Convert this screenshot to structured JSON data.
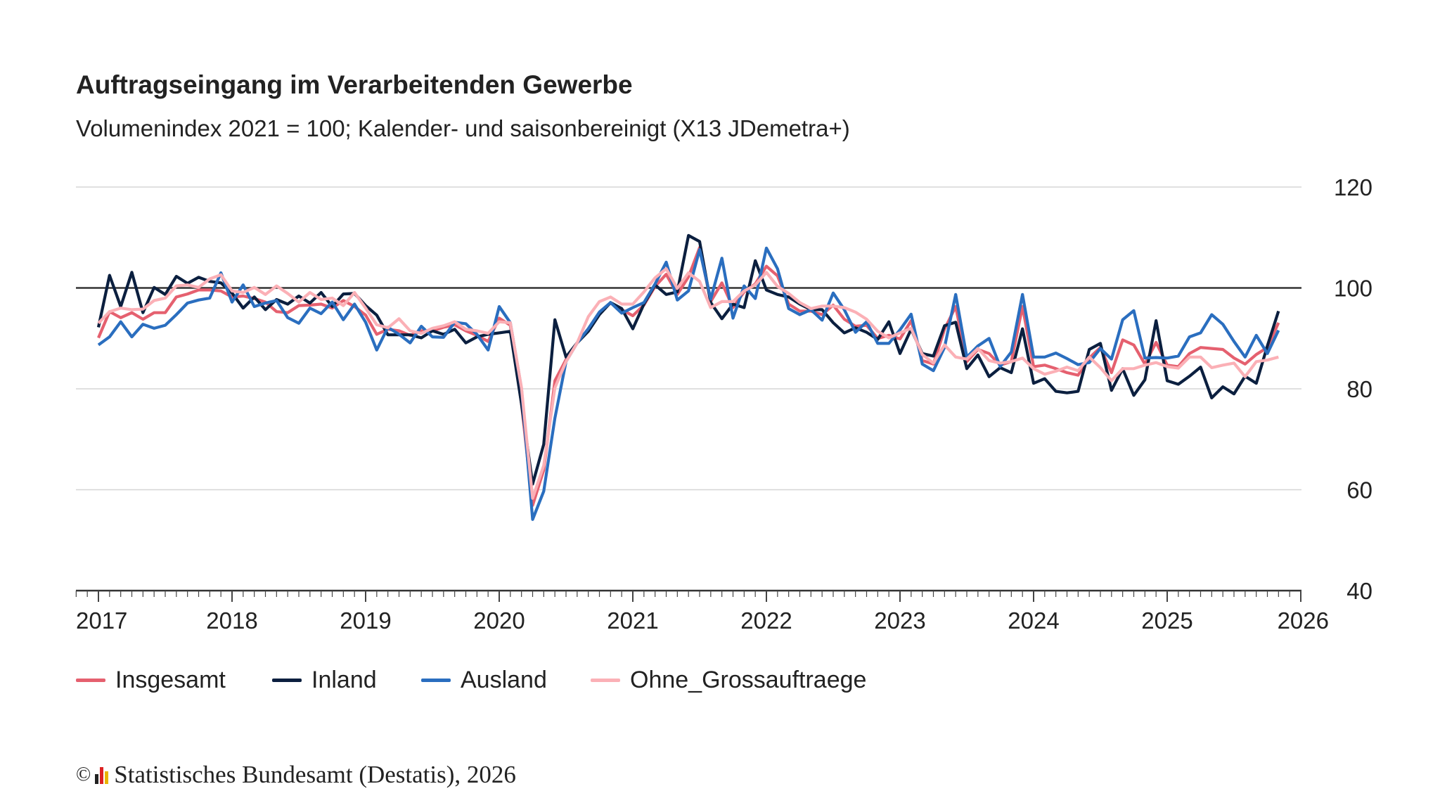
{
  "title": "Auftragseingang im Verarbeitenden Gewerbe",
  "subtitle": "Volumenindex 2021 = 100; Kalender- und saisonbereinigt (X13 JDemetra+)",
  "footer": {
    "copyright": "©",
    "logo": "Destatis",
    "text": "Statistisches Bundesamt (Destatis), 2026"
  },
  "chart_data": {
    "type": "line",
    "title": "Auftragseingang im Verarbeitenden Gewerbe",
    "subtitle": "Volumenindex 2021 = 100; Kalender- und saisonbereinigt (X13 JDemetra+)",
    "xlabel": "",
    "ylabel": "",
    "x_range": [
      "2017-01",
      "2026-01"
    ],
    "x_frequency": "monthly",
    "x_first": "2017-01",
    "x_last": "2025-11",
    "xticks": [
      "2017",
      "2018",
      "2019",
      "2020",
      "2021",
      "2022",
      "2023",
      "2024",
      "2025",
      "2026"
    ],
    "ylim": [
      40,
      120
    ],
    "yticks": [
      40,
      60,
      80,
      100,
      120
    ],
    "yaxis_position": "right",
    "reference_line": 100,
    "grid": true,
    "legend_position": "bottom",
    "series": [
      {
        "name": "Insgesamt",
        "color": "#e5606f",
        "values": [
          90.1,
          95.3,
          94.1,
          95.1,
          93.8,
          95.1,
          95.1,
          98.2,
          98.8,
          99.6,
          99.6,
          99.4,
          98.2,
          98.4,
          97.9,
          97.2,
          95.3,
          95.1,
          96.5,
          96.6,
          96.8,
          96.0,
          97.5,
          96.3,
          94.6,
          90.8,
          91.8,
          91.5,
          90.6,
          91.5,
          91.5,
          92.2,
          92.7,
          91.5,
          90.6,
          89.4,
          94.0,
          92.6,
          77.0,
          56.9,
          63.9,
          81.6,
          85.8,
          89.1,
          91.9,
          95.2,
          97.0,
          95.7,
          94.5,
          96.6,
          100.3,
          102.7,
          98.7,
          102.2,
          108.0,
          97.3,
          101.0,
          96.1,
          99.2,
          100.8,
          104.3,
          102.4,
          96.8,
          95.4,
          95.4,
          94.7,
          96.6,
          93.8,
          92.4,
          92.6,
          90.0,
          90.6,
          89.9,
          93.5,
          85.6,
          84.9,
          91.8,
          96.3,
          85.4,
          87.8,
          87.0,
          84.7,
          85.4,
          96.3,
          84.4,
          84.7,
          84.0,
          83.2,
          82.7,
          86.1,
          88.2,
          83.2,
          89.7,
          88.7,
          84.9,
          89.2,
          84.7,
          84.4,
          87.0,
          88.2,
          88.0,
          87.8,
          86.1,
          84.9,
          86.8,
          88.2,
          93.1
        ]
      },
      {
        "name": "Inland",
        "color": "#0b1f3f",
        "values": [
          92.2,
          102.5,
          96.3,
          103.1,
          95.1,
          100.1,
          98.7,
          102.3,
          100.9,
          102.1,
          101.3,
          101.0,
          99.0,
          96.0,
          98.2,
          95.7,
          97.7,
          96.8,
          98.4,
          97.0,
          99.1,
          96.3,
          98.8,
          98.9,
          96.5,
          94.6,
          90.7,
          90.7,
          90.7,
          90.1,
          91.5,
          90.8,
          91.8,
          89.1,
          90.3,
          90.8,
          91.1,
          91.4,
          77.0,
          61.1,
          69.0,
          93.7,
          86.3,
          89.1,
          91.4,
          94.7,
          97.1,
          95.9,
          91.9,
          96.8,
          100.6,
          98.7,
          99.2,
          110.4,
          109.2,
          97.1,
          93.9,
          96.8,
          96.1,
          105.4,
          99.6,
          98.7,
          98.2,
          96.8,
          95.7,
          95.7,
          93.1,
          91.1,
          92.1,
          91.2,
          89.8,
          93.3,
          87.0,
          91.8,
          87.0,
          86.5,
          92.5,
          93.2,
          84.0,
          86.7,
          82.4,
          84.2,
          83.2,
          91.9,
          81.1,
          82.0,
          79.5,
          79.2,
          79.5,
          87.8,
          89.0,
          79.7,
          84.0,
          78.7,
          81.8,
          93.5,
          81.6,
          80.9,
          82.5,
          84.3,
          78.2,
          80.4,
          79.0,
          82.5,
          81.1,
          88.5,
          95.4
        ]
      },
      {
        "name": "Ausland",
        "color": "#2a6ebf",
        "values": [
          88.7,
          90.3,
          93.3,
          90.3,
          92.8,
          92.0,
          92.6,
          94.7,
          97.0,
          97.6,
          98.0,
          103.0,
          97.2,
          100.6,
          96.3,
          97.0,
          97.5,
          94.1,
          93.0,
          96.0,
          94.9,
          97.2,
          93.7,
          96.8,
          93.2,
          87.7,
          92.2,
          90.8,
          89.1,
          92.4,
          90.3,
          90.2,
          93.2,
          92.9,
          90.8,
          87.7,
          96.3,
          93.1,
          80.0,
          54.1,
          59.7,
          74.2,
          85.4,
          89.1,
          91.9,
          95.2,
          97.1,
          95.0,
          96.1,
          97.1,
          100.8,
          105.1,
          97.6,
          99.4,
          107.6,
          97.8,
          105.9,
          94.0,
          100.4,
          97.9,
          107.9,
          103.8,
          95.9,
          94.7,
          95.7,
          93.6,
          99.0,
          95.7,
          91.2,
          93.3,
          89.0,
          89.0,
          91.7,
          94.8,
          84.9,
          83.6,
          88.2,
          98.7,
          86.3,
          88.5,
          90.0,
          84.4,
          87.3,
          98.7,
          86.3,
          86.3,
          87.1,
          86.0,
          84.8,
          85.2,
          88.0,
          85.9,
          93.7,
          95.5,
          86.1,
          86.2,
          86.1,
          86.5,
          90.3,
          91.1,
          94.7,
          92.8,
          89.4,
          86.3,
          90.6,
          87.0,
          91.6
        ]
      },
      {
        "name": "Ohne_Grossauftraege",
        "color": "#fbb0b6",
        "values": [
          93.0,
          95.3,
          96.0,
          95.7,
          95.8,
          97.5,
          98.0,
          100.4,
          100.6,
          100.1,
          101.8,
          102.6,
          99.4,
          99.1,
          100.1,
          98.7,
          100.4,
          98.9,
          97.2,
          99.1,
          97.7,
          98.0,
          96.5,
          99.1,
          96.0,
          92.7,
          92.1,
          93.9,
          91.5,
          91.0,
          92.0,
          92.5,
          93.3,
          91.8,
          91.5,
          91.0,
          93.3,
          93.1,
          80.2,
          58.3,
          64.8,
          80.2,
          85.4,
          89.1,
          94.3,
          97.3,
          98.2,
          96.8,
          96.8,
          99.2,
          102.0,
          103.8,
          99.9,
          103.0,
          101.3,
          96.1,
          97.3,
          97.3,
          99.4,
          100.6,
          103.1,
          100.3,
          98.9,
          97.1,
          95.9,
          96.4,
          96.4,
          96.1,
          95.2,
          93.8,
          91.4,
          90.1,
          91.1,
          92.0,
          86.8,
          85.1,
          88.7,
          86.3,
          85.9,
          88.0,
          85.6,
          85.1,
          85.4,
          86.1,
          84.0,
          82.9,
          83.5,
          84.3,
          83.6,
          86.3,
          84.2,
          81.6,
          84.0,
          84.0,
          84.7,
          85.2,
          84.4,
          84.1,
          86.3,
          86.3,
          84.2,
          84.7,
          85.1,
          82.4,
          85.4,
          85.7,
          86.3
        ]
      }
    ]
  }
}
